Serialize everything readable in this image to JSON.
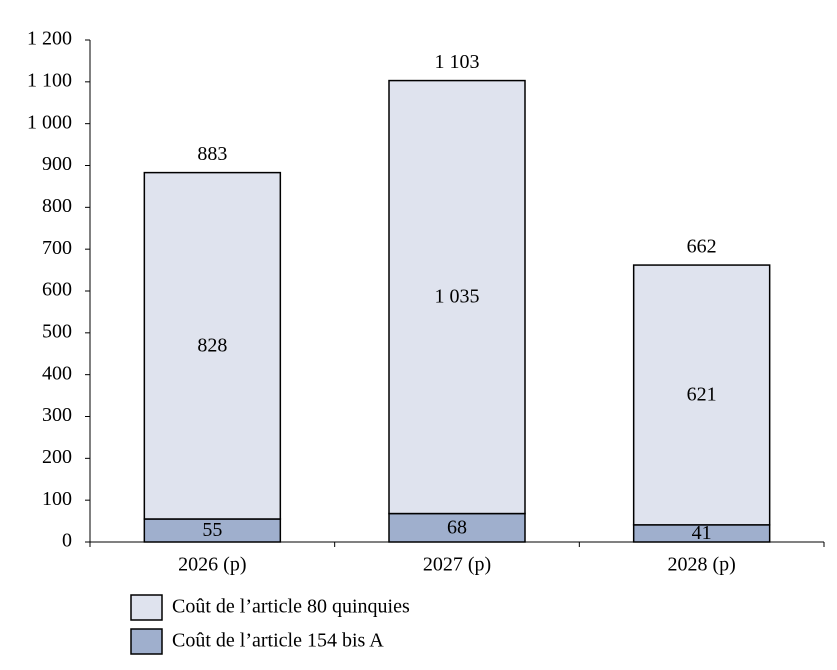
{
  "chart_data": {
    "type": "stacked_bar",
    "categories": [
      "2026 (p)",
      "2027 (p)",
      "2028 (p)"
    ],
    "series": [
      {
        "name": "Coût de l’article 154 bis A",
        "color": "#9fafcd",
        "values": [
          55,
          68,
          41
        ]
      },
      {
        "name": "Coût de l’article 80 quinquies",
        "color": "#dfe3ee",
        "values": [
          828,
          1035,
          621
        ],
        "value_labels": [
          "828",
          "1 035",
          "621"
        ]
      }
    ],
    "totals": {
      "values": [
        883,
        1103,
        662
      ],
      "value_labels": [
        "883",
        "1 103",
        "662"
      ]
    },
    "ylim": [
      0,
      1200
    ],
    "yticks": [
      0,
      100,
      200,
      300,
      400,
      500,
      600,
      700,
      800,
      900,
      {
        "value": 1000,
        "label": "1 000"
      },
      {
        "value": 1100,
        "label": "1 100"
      },
      {
        "value": 1200,
        "label": "1 200"
      }
    ]
  }
}
